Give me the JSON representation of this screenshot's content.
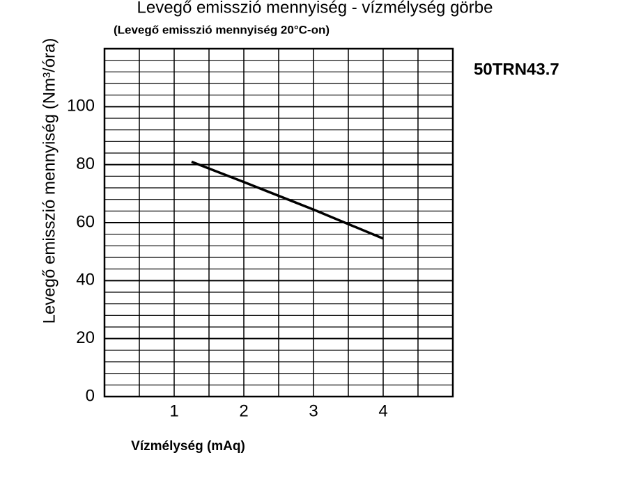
{
  "chart_data": {
    "type": "line",
    "title": "Levegő emisszió mennyiség - vízmélység görbe",
    "subtitle": "(Levegő emisszió mennyiség 20°C-on)",
    "x_label": "Vízmélység (mAq)",
    "y_label": "Levegő emisszió mennyiség (Nm³/óra)",
    "annotation": "50TRN43.7",
    "x": [
      1.25,
      2,
      3,
      4
    ],
    "series": [
      {
        "color": "#000000",
        "values": [
          81,
          74,
          64.5,
          54.5
        ]
      }
    ],
    "xlim": [
      0,
      5
    ],
    "xticks": [
      1,
      2,
      3,
      4
    ],
    "xminorticks": [
      0.5,
      1.5,
      2.5,
      3.5,
      4.5
    ],
    "ylim": [
      0,
      120
    ],
    "yticks": [
      0,
      20,
      40,
      60,
      80,
      100
    ],
    "yminorticks": [
      4,
      8,
      12,
      16,
      24,
      28,
      32,
      36,
      44,
      48,
      52,
      56,
      64,
      68,
      72,
      76,
      84,
      88,
      92,
      96,
      104,
      108,
      112,
      116
    ],
    "grid": true
  }
}
